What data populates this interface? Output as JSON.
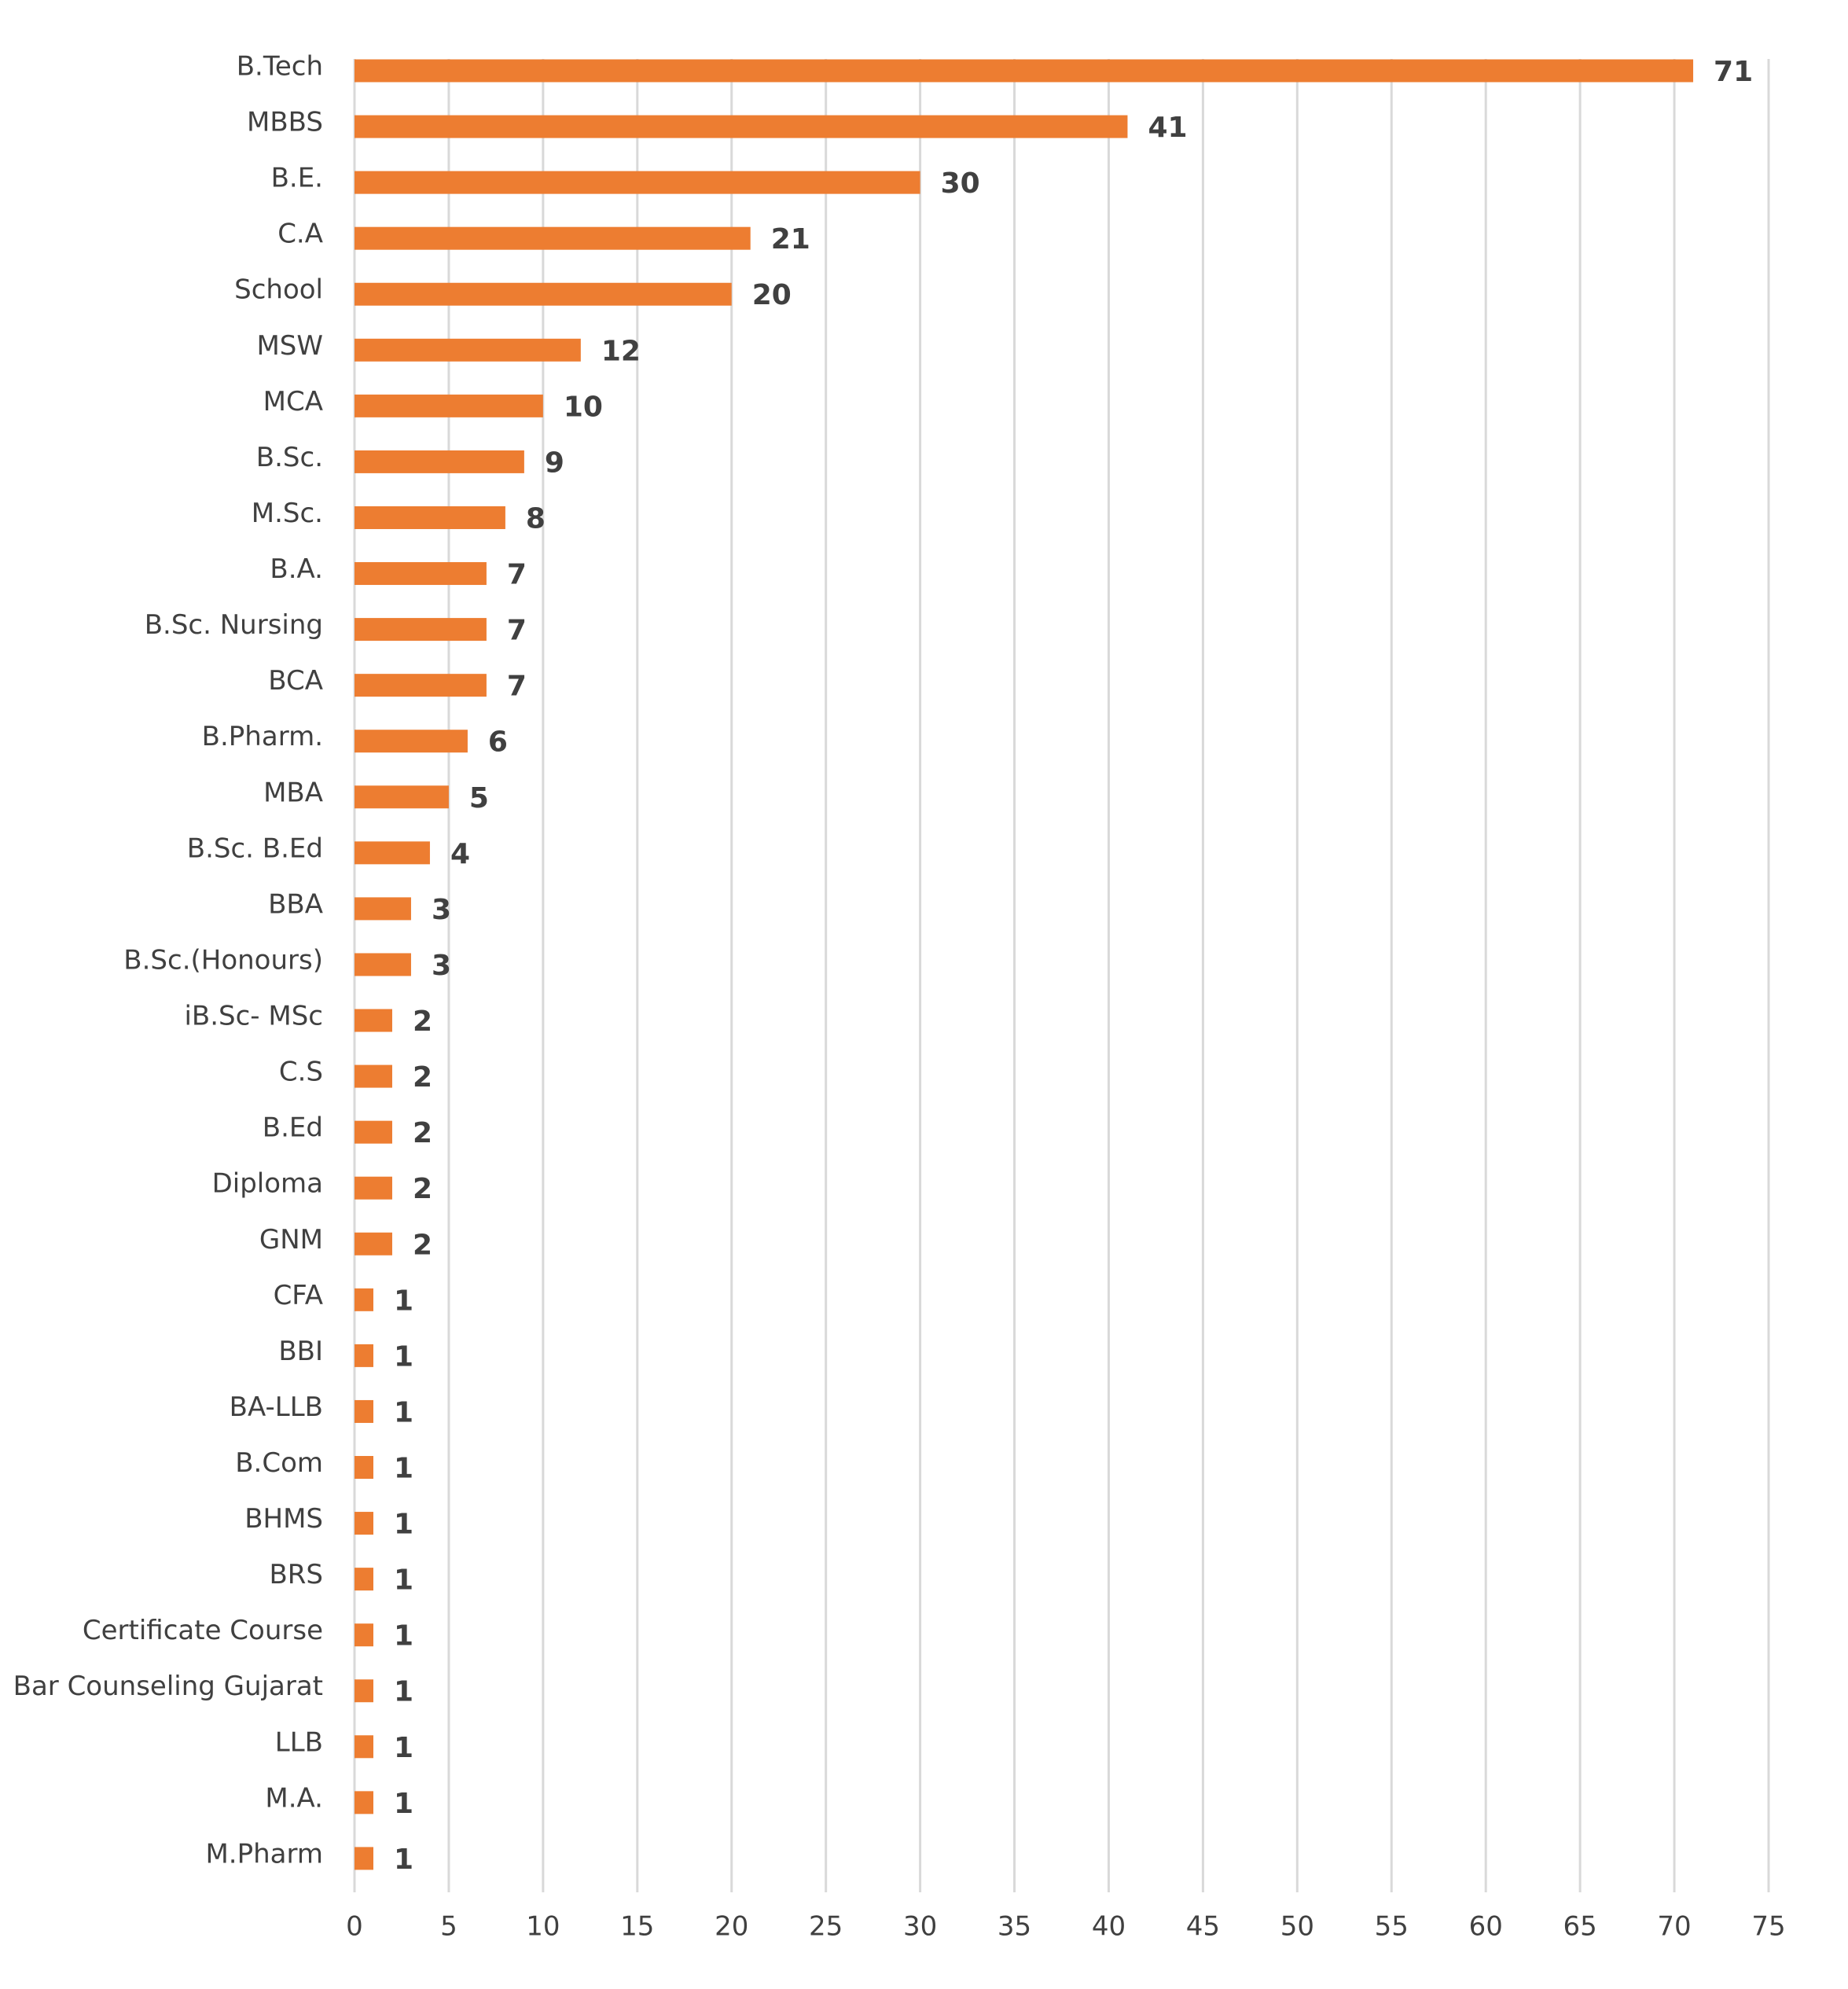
{
  "chart_data": {
    "type": "bar",
    "orientation": "horizontal",
    "title": "",
    "xlabel": "",
    "ylabel": "",
    "categories": [
      "B.Tech",
      "MBBS",
      "B.E.",
      "C.A",
      "School",
      "MSW",
      "MCA",
      "B.Sc.",
      "M.Sc.",
      "B.A.",
      "B.Sc. Nursing",
      "BCA",
      "B.Pharm.",
      "MBA",
      "B.Sc. B.Ed",
      "BBA",
      "B.Sc.(Honours)",
      "iB.Sc- MSc",
      "C.S",
      "B.Ed",
      "Diploma",
      "GNM",
      "CFA",
      "BBI",
      "BA-LLB",
      "B.Com",
      "BHMS",
      "BRS",
      "Certificate Course",
      "Bar Counseling Gujarat",
      "LLB",
      "M.A.",
      "M.Pharm"
    ],
    "values": [
      71,
      41,
      30,
      21,
      20,
      12,
      10,
      9,
      8,
      7,
      7,
      7,
      6,
      5,
      4,
      3,
      3,
      2,
      2,
      2,
      2,
      2,
      1,
      1,
      1,
      1,
      1,
      1,
      1,
      1,
      1,
      1,
      1
    ],
    "data_labels": [
      "71",
      "41",
      "30",
      "21",
      "20",
      "12",
      "10",
      "9",
      "8",
      "7",
      "7",
      "7",
      "6",
      "5",
      "4",
      "3",
      "3",
      "2",
      "2",
      "2",
      "2",
      "2",
      "1",
      "1",
      "1",
      "1",
      "1",
      "1",
      "1",
      "1",
      "1",
      "1",
      "1"
    ],
    "xlim": [
      0,
      75
    ],
    "xticks": [
      "0",
      "5",
      "10",
      "15",
      "20",
      "25",
      "30",
      "35",
      "40",
      "45",
      "50",
      "55",
      "60",
      "65",
      "70",
      "75"
    ],
    "grid": "vertical",
    "legend": "none",
    "bar_color": "#ED7D31",
    "grid_color": "#D9D9D9",
    "text_color": "#404040"
  }
}
